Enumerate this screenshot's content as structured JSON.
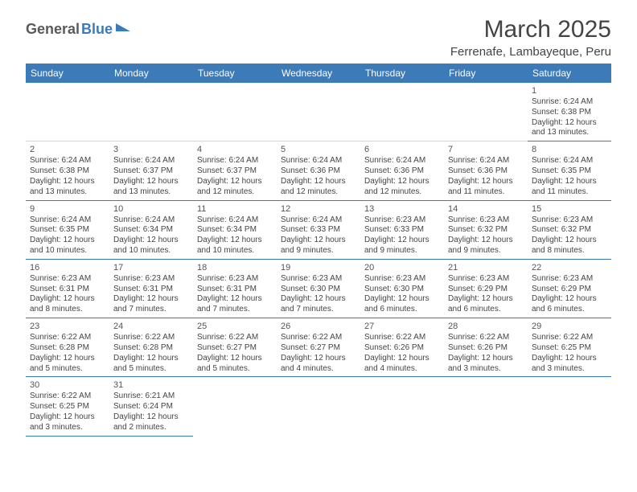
{
  "logo": {
    "part1": "General",
    "part2": "Blue"
  },
  "title": "March 2025",
  "location": "Ferrenafe, Lambayeque, Peru",
  "header_bg": "#3d7ab8",
  "weekdays": [
    "Sunday",
    "Monday",
    "Tuesday",
    "Wednesday",
    "Thursday",
    "Friday",
    "Saturday"
  ],
  "weeks": [
    [
      null,
      null,
      null,
      null,
      null,
      null,
      {
        "d": "1",
        "sr": "6:24 AM",
        "ss": "6:38 PM",
        "dl": "12 hours and 13 minutes."
      }
    ],
    [
      {
        "d": "2",
        "sr": "6:24 AM",
        "ss": "6:38 PM",
        "dl": "12 hours and 13 minutes."
      },
      {
        "d": "3",
        "sr": "6:24 AM",
        "ss": "6:37 PM",
        "dl": "12 hours and 13 minutes."
      },
      {
        "d": "4",
        "sr": "6:24 AM",
        "ss": "6:37 PM",
        "dl": "12 hours and 12 minutes."
      },
      {
        "d": "5",
        "sr": "6:24 AM",
        "ss": "6:36 PM",
        "dl": "12 hours and 12 minutes."
      },
      {
        "d": "6",
        "sr": "6:24 AM",
        "ss": "6:36 PM",
        "dl": "12 hours and 12 minutes."
      },
      {
        "d": "7",
        "sr": "6:24 AM",
        "ss": "6:36 PM",
        "dl": "12 hours and 11 minutes."
      },
      {
        "d": "8",
        "sr": "6:24 AM",
        "ss": "6:35 PM",
        "dl": "12 hours and 11 minutes."
      }
    ],
    [
      {
        "d": "9",
        "sr": "6:24 AM",
        "ss": "6:35 PM",
        "dl": "12 hours and 10 minutes."
      },
      {
        "d": "10",
        "sr": "6:24 AM",
        "ss": "6:34 PM",
        "dl": "12 hours and 10 minutes."
      },
      {
        "d": "11",
        "sr": "6:24 AM",
        "ss": "6:34 PM",
        "dl": "12 hours and 10 minutes."
      },
      {
        "d": "12",
        "sr": "6:24 AM",
        "ss": "6:33 PM",
        "dl": "12 hours and 9 minutes."
      },
      {
        "d": "13",
        "sr": "6:23 AM",
        "ss": "6:33 PM",
        "dl": "12 hours and 9 minutes."
      },
      {
        "d": "14",
        "sr": "6:23 AM",
        "ss": "6:32 PM",
        "dl": "12 hours and 9 minutes."
      },
      {
        "d": "15",
        "sr": "6:23 AM",
        "ss": "6:32 PM",
        "dl": "12 hours and 8 minutes."
      }
    ],
    [
      {
        "d": "16",
        "sr": "6:23 AM",
        "ss": "6:31 PM",
        "dl": "12 hours and 8 minutes."
      },
      {
        "d": "17",
        "sr": "6:23 AM",
        "ss": "6:31 PM",
        "dl": "12 hours and 7 minutes."
      },
      {
        "d": "18",
        "sr": "6:23 AM",
        "ss": "6:31 PM",
        "dl": "12 hours and 7 minutes."
      },
      {
        "d": "19",
        "sr": "6:23 AM",
        "ss": "6:30 PM",
        "dl": "12 hours and 7 minutes."
      },
      {
        "d": "20",
        "sr": "6:23 AM",
        "ss": "6:30 PM",
        "dl": "12 hours and 6 minutes."
      },
      {
        "d": "21",
        "sr": "6:23 AM",
        "ss": "6:29 PM",
        "dl": "12 hours and 6 minutes."
      },
      {
        "d": "22",
        "sr": "6:23 AM",
        "ss": "6:29 PM",
        "dl": "12 hours and 6 minutes."
      }
    ],
    [
      {
        "d": "23",
        "sr": "6:22 AM",
        "ss": "6:28 PM",
        "dl": "12 hours and 5 minutes."
      },
      {
        "d": "24",
        "sr": "6:22 AM",
        "ss": "6:28 PM",
        "dl": "12 hours and 5 minutes."
      },
      {
        "d": "25",
        "sr": "6:22 AM",
        "ss": "6:27 PM",
        "dl": "12 hours and 5 minutes."
      },
      {
        "d": "26",
        "sr": "6:22 AM",
        "ss": "6:27 PM",
        "dl": "12 hours and 4 minutes."
      },
      {
        "d": "27",
        "sr": "6:22 AM",
        "ss": "6:26 PM",
        "dl": "12 hours and 4 minutes."
      },
      {
        "d": "28",
        "sr": "6:22 AM",
        "ss": "6:26 PM",
        "dl": "12 hours and 3 minutes."
      },
      {
        "d": "29",
        "sr": "6:22 AM",
        "ss": "6:25 PM",
        "dl": "12 hours and 3 minutes."
      }
    ],
    [
      {
        "d": "30",
        "sr": "6:22 AM",
        "ss": "6:25 PM",
        "dl": "12 hours and 3 minutes."
      },
      {
        "d": "31",
        "sr": "6:21 AM",
        "ss": "6:24 PM",
        "dl": "12 hours and 2 minutes."
      },
      null,
      null,
      null,
      null,
      null
    ]
  ],
  "labels": {
    "sunrise": "Sunrise:",
    "sunset": "Sunset:",
    "daylight": "Daylight:"
  }
}
